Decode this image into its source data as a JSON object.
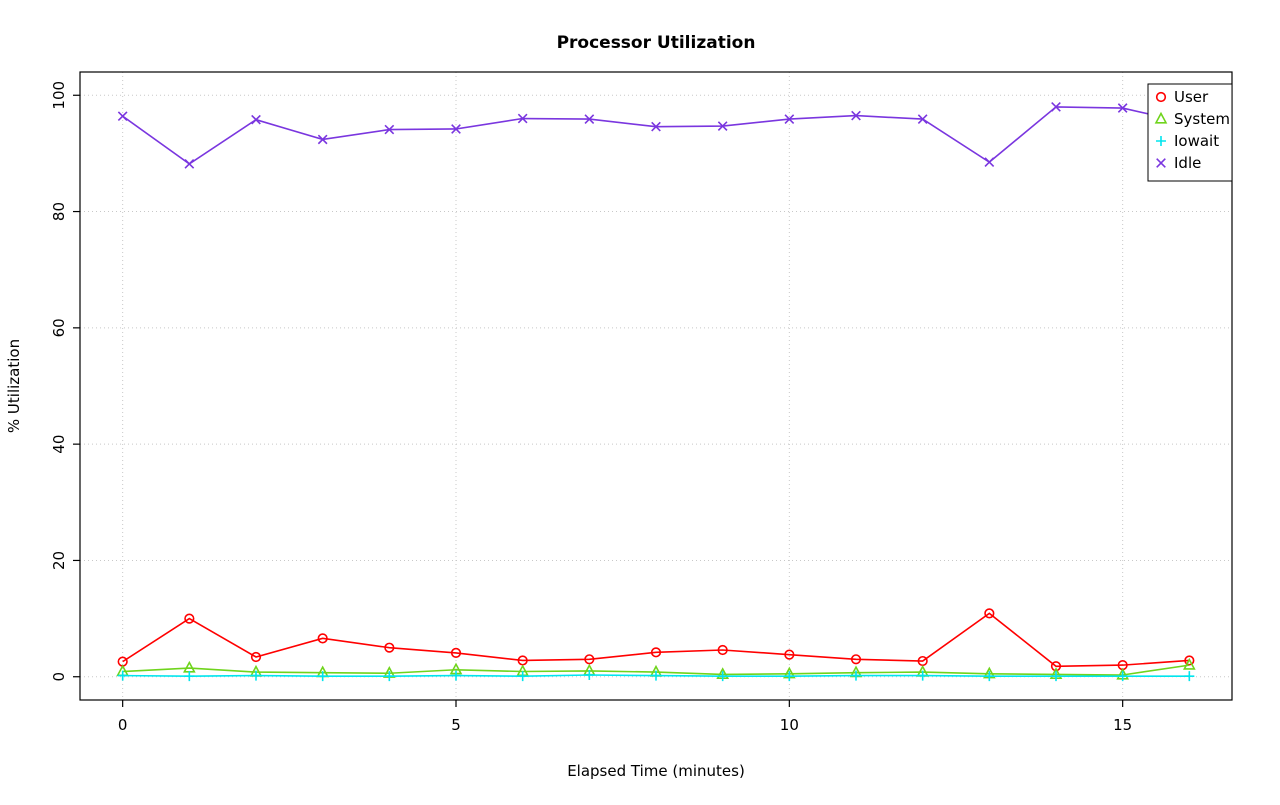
{
  "title": "Processor Utilization",
  "chart_data": {
    "type": "line",
    "title": "Processor Utilization",
    "xlabel": "Elapsed Time (minutes)",
    "ylabel": "% Utilization",
    "x": [
      0,
      1,
      2,
      3,
      4,
      5,
      6,
      7,
      8,
      9,
      10,
      11,
      12,
      13,
      14,
      15,
      16
    ],
    "xlim": [
      0,
      16
    ],
    "ylim": [
      0,
      100
    ],
    "xticks": [
      0,
      5,
      10,
      15
    ],
    "yticks": [
      0,
      20,
      40,
      60,
      80,
      100
    ],
    "grid": true,
    "legend_position": "top-right",
    "series": [
      {
        "name": "User",
        "color": "#ff0000",
        "marker": "circle",
        "values": [
          2.6,
          10.0,
          3.4,
          6.6,
          5.0,
          4.1,
          2.8,
          3.0,
          4.2,
          4.6,
          3.8,
          3.0,
          2.7,
          10.9,
          1.8,
          2.0,
          2.8
        ]
      },
      {
        "name": "System",
        "color": "#6fd41c",
        "marker": "triangle",
        "values": [
          0.9,
          1.5,
          0.8,
          0.7,
          0.6,
          1.2,
          0.9,
          1.0,
          0.8,
          0.4,
          0.5,
          0.7,
          0.8,
          0.5,
          0.4,
          0.3,
          2.0
        ]
      },
      {
        "name": "Iowait",
        "color": "#00e5ee",
        "marker": "plus",
        "values": [
          0.2,
          0.1,
          0.2,
          0.1,
          0.1,
          0.2,
          0.1,
          0.3,
          0.2,
          0.1,
          0.1,
          0.2,
          0.2,
          0.1,
          0.1,
          0.1,
          0.1
        ]
      },
      {
        "name": "Idle",
        "color": "#7a36df",
        "marker": "x",
        "values": [
          96.4,
          88.2,
          95.8,
          92.4,
          94.1,
          94.2,
          96.0,
          95.9,
          94.6,
          94.7,
          95.9,
          96.5,
          95.9,
          88.5,
          98.0,
          97.8,
          95.2
        ]
      }
    ],
    "grid_color": "#c8c8c8",
    "axis_color": "#000000"
  }
}
